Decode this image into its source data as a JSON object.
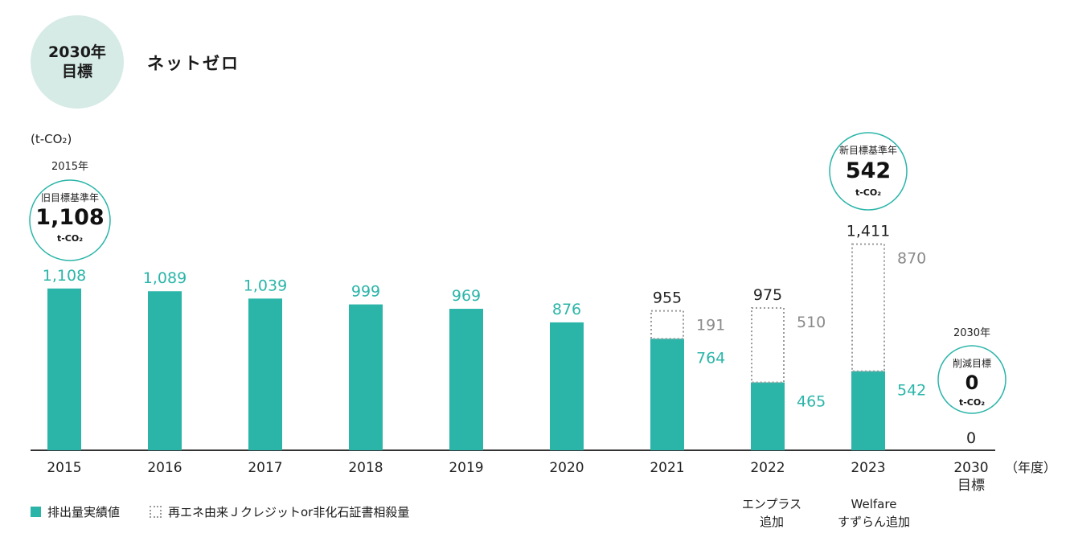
{
  "header": {
    "goal_badge_line1": "2030年",
    "goal_badge_line2": "目標",
    "title": "ネットゼロ"
  },
  "chart_data": {
    "type": "bar",
    "unit_label": "(t-CO₂)",
    "x_axis_unit": "（年度）",
    "categories": [
      "2015",
      "2016",
      "2017",
      "2018",
      "2019",
      "2020",
      "2021",
      "2022",
      "2023",
      "2030"
    ],
    "category_sublabels": [
      "",
      "",
      "",
      "",
      "",
      "",
      "",
      "",
      "",
      "目標"
    ],
    "series": [
      {
        "name": "排出量実績値",
        "values": [
          1108,
          1089,
          1039,
          999,
          969,
          876,
          764,
          465,
          542,
          0
        ]
      },
      {
        "name": "再エネ由来Ｊクレジットor非化石証書相殺量",
        "values": [
          null,
          null,
          null,
          null,
          null,
          null,
          191,
          510,
          870,
          null
        ]
      }
    ],
    "bar_top_labels": [
      "1,108",
      "1,089",
      "1,039",
      "999",
      "969",
      "876",
      "955",
      "975",
      "1,411",
      "0"
    ],
    "side_labels": [
      {
        "index": 6,
        "actual": "764",
        "offset": "191"
      },
      {
        "index": 7,
        "actual": "465",
        "offset": "510"
      },
      {
        "index": 8,
        "actual": "542",
        "offset": "870"
      }
    ],
    "bottom_notes": [
      {
        "index": 7,
        "lines": [
          "エンプラス",
          "追加"
        ]
      },
      {
        "index": 8,
        "lines": [
          "Welfare",
          "すずらん追加"
        ]
      }
    ],
    "callouts": [
      {
        "index": 0,
        "above": "2015年",
        "line1": "旧目標基準年",
        "value": "1,108",
        "unit": "t-CO₂"
      },
      {
        "index": 8,
        "above": "",
        "line1": "新目標基準年",
        "value": "542",
        "unit": "t-CO₂"
      },
      {
        "index": 9,
        "above": "2030年",
        "line1": "削減目標",
        "value": "0",
        "unit": "t-CO₂"
      }
    ],
    "ylim": [
      0,
      1411
    ],
    "colors": {
      "actual": "#2bb5a9",
      "offset_border": "#9a9a9a",
      "label_teal": "#2bb5a9",
      "label_gray": "#8a8a8a",
      "callout_border": "#2bb5a9"
    }
  },
  "legend": {
    "actual_label": "排出量実績値",
    "offset_label": "再エネ由来Ｊクレジットor非化石証書相殺量"
  }
}
